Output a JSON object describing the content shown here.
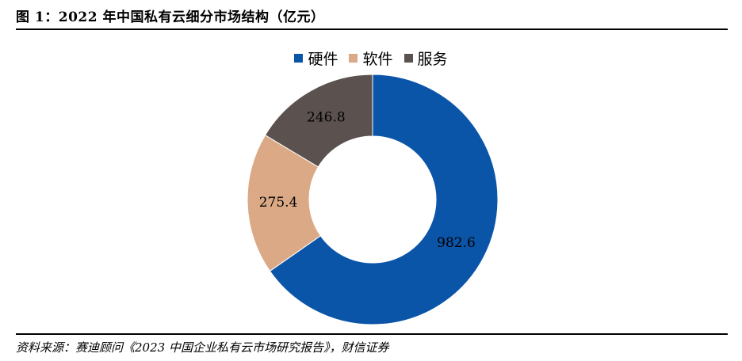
{
  "header": {
    "title": "图 1：2022 年中国私有云细分市场结构（亿元）"
  },
  "footer": {
    "source": "资料来源：赛迪顾问《2023 中国企业私有云市场研究报告》，财信证券"
  },
  "chart_data": {
    "type": "pie",
    "donut": true,
    "categories": [
      "硬件",
      "软件",
      "服务"
    ],
    "values": [
      982.6,
      275.4,
      246.8
    ],
    "value_labels": [
      "982.6",
      "275.4",
      "246.8"
    ],
    "colors": [
      "#0B55A8",
      "#DBA985",
      "#5B5250"
    ],
    "legend": "top",
    "start_angle": "12 o'clock, clockwise"
  }
}
